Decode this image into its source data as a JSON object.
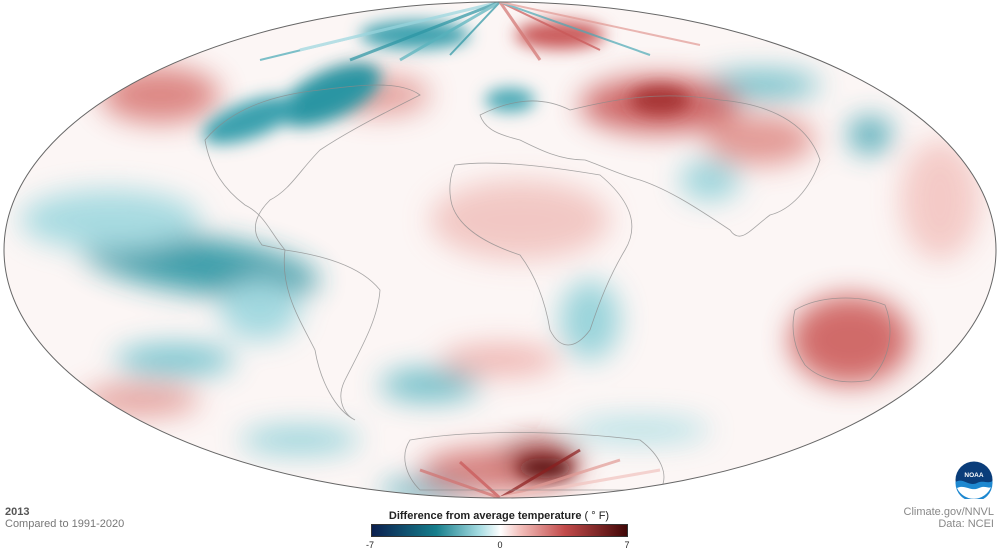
{
  "map": {
    "year": "2013",
    "comparison": "Compared to 1991-2020",
    "projection": "Mollweide world map",
    "color_scale": [
      "#0b1f4f",
      "#167e8c",
      "#8fd3dc",
      "#ffffff",
      "#f0b6b3",
      "#c24a4a",
      "#4a0808"
    ]
  },
  "legend": {
    "title": "Difference from average temperature",
    "unit": "( ° F)",
    "min_label": "-7",
    "mid_label": "0",
    "max_label": "7"
  },
  "credits": {
    "line1": "Climate.gov/NNVL",
    "line2": "Data: NCEI"
  },
  "logo": {
    "icon": "noaa-logo-icon",
    "text": "NOAA"
  }
}
